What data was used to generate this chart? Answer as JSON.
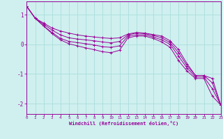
{
  "background_color": "#cff0ee",
  "grid_color": "#aadddd",
  "line_color": "#990099",
  "marker": "+",
  "xlabel": "Windchill (Refroidissement éolien,°C)",
  "xlim": [
    0,
    23
  ],
  "ylim": [
    -2.35,
    1.45
  ],
  "yticks": [
    1,
    0,
    -1,
    -2
  ],
  "xticks": [
    0,
    1,
    2,
    3,
    4,
    5,
    6,
    7,
    8,
    9,
    10,
    11,
    12,
    13,
    14,
    15,
    16,
    17,
    18,
    19,
    20,
    21,
    22,
    23
  ],
  "series": [
    [
      1.28,
      0.88,
      0.72,
      0.55,
      0.45,
      0.38,
      0.32,
      0.28,
      0.25,
      0.22,
      0.2,
      0.22,
      0.35,
      0.4,
      0.38,
      0.33,
      0.28,
      0.12,
      -0.18,
      -0.65,
      -1.05,
      -1.05,
      -1.15,
      -2.05
    ],
    [
      1.28,
      0.88,
      0.68,
      0.48,
      0.32,
      0.22,
      0.18,
      0.15,
      0.12,
      0.08,
      0.05,
      0.1,
      0.32,
      0.38,
      0.36,
      0.3,
      0.22,
      0.06,
      -0.28,
      -0.72,
      -1.05,
      -1.05,
      -1.3,
      -2.05
    ],
    [
      1.28,
      0.88,
      0.62,
      0.4,
      0.2,
      0.1,
      0.06,
      0.02,
      -0.02,
      -0.08,
      -0.1,
      -0.05,
      0.28,
      0.32,
      0.32,
      0.25,
      0.15,
      0.0,
      -0.4,
      -0.8,
      -1.1,
      -1.1,
      -1.5,
      -2.05
    ],
    [
      1.28,
      0.88,
      0.62,
      0.36,
      0.15,
      0.02,
      -0.05,
      -0.12,
      -0.18,
      -0.25,
      -0.28,
      -0.2,
      0.22,
      0.28,
      0.28,
      0.2,
      0.08,
      -0.1,
      -0.55,
      -0.9,
      -1.15,
      -1.15,
      -1.75,
      -2.05
    ]
  ]
}
